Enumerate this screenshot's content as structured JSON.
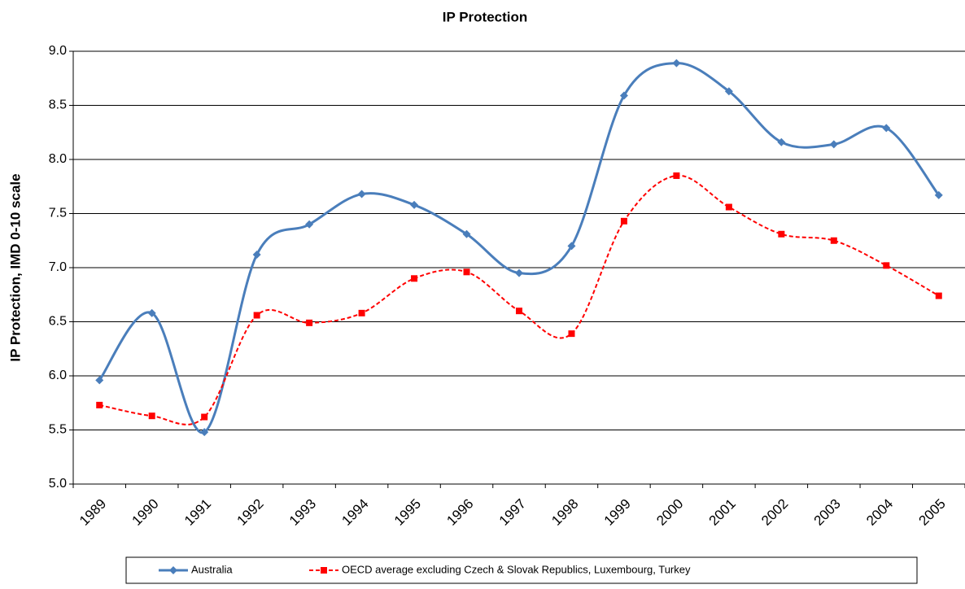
{
  "chart_data": {
    "type": "line",
    "title": "IP Protection",
    "y_label": "IP Protection, IMD 0-10 scale",
    "categories": [
      "1989",
      "1990",
      "1991",
      "1992",
      "1993",
      "1994",
      "1995",
      "1996",
      "1997",
      "1998",
      "1999",
      "2000",
      "2001",
      "2002",
      "2003",
      "2004",
      "2005"
    ],
    "series": [
      {
        "name": "Australia",
        "color": "#4a7ebb",
        "marker": "diamond",
        "dash": false,
        "smooth": true,
        "values": [
          5.96,
          6.58,
          5.48,
          7.12,
          7.4,
          7.68,
          7.58,
          7.31,
          6.95,
          7.2,
          8.59,
          8.89,
          8.63,
          8.16,
          8.14,
          8.29,
          7.67
        ]
      },
      {
        "name": "OECD average excluding Czech & Slovak Republics, Luxembourg, Turkey",
        "color": "#ff0000",
        "marker": "square",
        "dash": true,
        "smooth": true,
        "values": [
          5.73,
          5.63,
          5.62,
          6.56,
          6.49,
          6.58,
          6.9,
          6.96,
          6.6,
          6.39,
          7.43,
          7.85,
          7.56,
          7.31,
          7.25,
          7.02,
          6.74
        ]
      }
    ],
    "ylim": [
      5.0,
      9.0
    ],
    "yticks": [
      {
        "value": 5.0,
        "label": "5.0"
      },
      5.5,
      {
        "value": 6.0,
        "label": "6.0"
      },
      6.5,
      {
        "value": 7.0,
        "label": "7.0"
      },
      7.5,
      {
        "value": 8.0,
        "label": "8.0"
      },
      8.5,
      {
        "value": 9.0,
        "label": "9.0"
      }
    ],
    "grid": true,
    "legend": "bottom"
  }
}
